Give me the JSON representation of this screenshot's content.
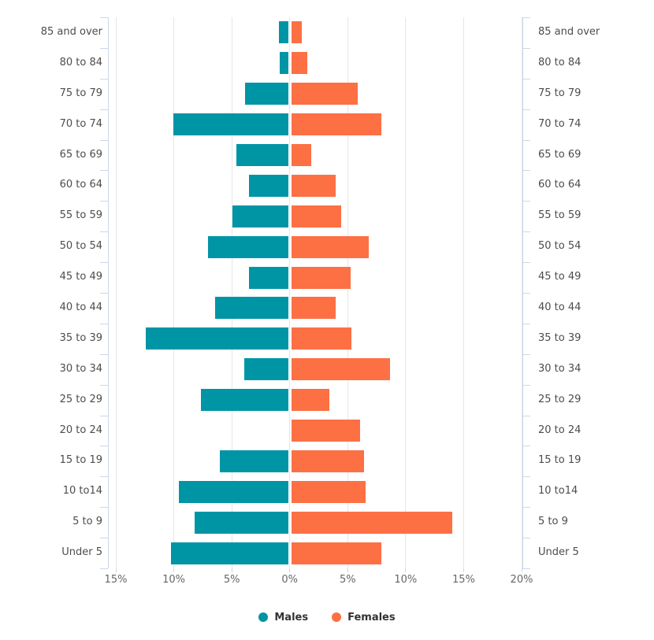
{
  "chart_data": {
    "type": "bar",
    "variant": "population_pyramid",
    "title": "",
    "unit": "%",
    "categories_top_to_bottom": [
      "85 and over",
      "80 to 84",
      "75 to 79",
      "70 to 74",
      "65 to 69",
      "60 to 64",
      "55 to 59",
      "50 to 54",
      "45 to 49",
      "40 to 44",
      "35 to 39",
      "30 to 34",
      "25 to 29",
      "20 to 24",
      "15 to 19",
      "10 to14",
      "5 to 9",
      "Under 5"
    ],
    "series": [
      {
        "name": "Males",
        "side": "left",
        "color": "#0095a5",
        "values": [
          0.8,
          0.7,
          3.7,
          9.9,
          4.5,
          3.4,
          4.8,
          6.9,
          3.4,
          6.3,
          12.3,
          3.8,
          7.5,
          0,
          5.9,
          9.4,
          8.1,
          10.1
        ]
      },
      {
        "name": "Females",
        "side": "right",
        "color": "#fc7044",
        "values": [
          0.9,
          1.4,
          5.7,
          7.8,
          1.7,
          3.8,
          4.3,
          6.7,
          5.1,
          3.8,
          5.2,
          8.5,
          3.3,
          5.9,
          6.3,
          6.4,
          13.9,
          7.8
        ]
      }
    ],
    "x_axis": {
      "range": [
        -15,
        20
      ],
      "grid": true,
      "ticks": [
        {
          "value": -15,
          "label": "15%"
        },
        {
          "value": -10,
          "label": "10%"
        },
        {
          "value": -5,
          "label": "5%"
        },
        {
          "value": 0,
          "label": "0%"
        },
        {
          "value": 5,
          "label": "5%"
        },
        {
          "value": 10,
          "label": "10%"
        },
        {
          "value": 15,
          "label": "15%"
        },
        {
          "value": 20,
          "label": "20%"
        }
      ]
    },
    "legend": {
      "position": "bottom",
      "items": [
        "Males",
        "Females"
      ]
    },
    "colors": {
      "grid": "#e6e6e6",
      "axis_line": "#ccd6eb",
      "category_label": "#4c4c4c",
      "tick_label": "#666666",
      "legend_text": "#333333",
      "background": "#ffffff"
    }
  }
}
